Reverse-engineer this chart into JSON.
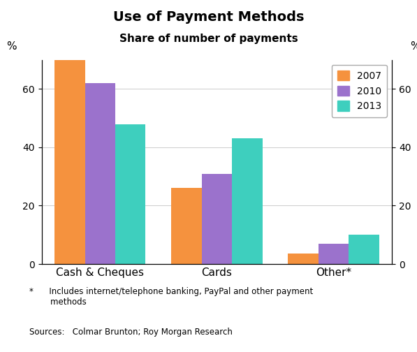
{
  "title": "Use of Payment Methods",
  "subtitle": "Share of number of payments",
  "categories": [
    "Cash & Cheques",
    "Cards",
    "Other*"
  ],
  "years": [
    "2007",
    "2010",
    "2013"
  ],
  "values": {
    "2007": [
      71,
      26,
      3.5
    ],
    "2010": [
      62,
      31,
      7
    ],
    "2013": [
      48,
      43,
      10
    ]
  },
  "colors": {
    "2007": "#F5923E",
    "2010": "#9B72CC",
    "2013": "#3ECFBE"
  },
  "ylim": [
    0,
    70
  ],
  "yticks": [
    0,
    20,
    40,
    60
  ],
  "ylabel_left": "%",
  "ylabel_right": "%",
  "footnote_star": "*      Includes internet/telephone banking, PayPal and other payment\n        methods",
  "sources": "Sources:   Colmar Brunton; Roy Morgan Research",
  "bar_width": 0.26
}
